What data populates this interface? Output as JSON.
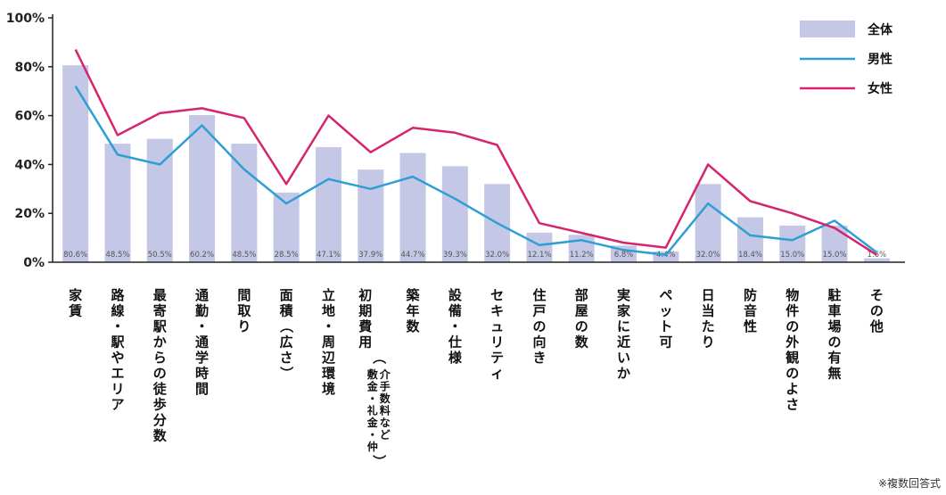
{
  "chart_data": {
    "type": "bar",
    "categories": [
      "家賃",
      "路線・駅やエリア",
      "最寄駅からの徒歩分数",
      "通勤・通学時間",
      "間取り",
      "面積（広さ）",
      "立地・周辺環境",
      "初期費用",
      "築年数",
      "設備・仕様",
      "セキュリティ",
      "住戸の向き",
      "部屋の数",
      "実家に近いか",
      "ペット可",
      "日当たり",
      "防音性",
      "物件の外観のよさ",
      "駐車場の有無",
      "その他"
    ],
    "category_sublabels": {
      "7": "敷金・礼金・仲介手数料など"
    },
    "series": [
      {
        "name": "全体",
        "type": "bar",
        "color": "#c4c8e6",
        "values": [
          80.6,
          48.5,
          50.5,
          60.2,
          48.5,
          28.5,
          47.1,
          37.9,
          44.7,
          39.3,
          32.0,
          12.1,
          11.2,
          6.8,
          4.4,
          32.0,
          18.4,
          15.0,
          15.0,
          1.6
        ]
      },
      {
        "name": "男性",
        "type": "line",
        "color": "#2e9fd4",
        "values": [
          72,
          44,
          40,
          56,
          38,
          24,
          34,
          30,
          35,
          26,
          16,
          7,
          9,
          5,
          3,
          24,
          11,
          9,
          17,
          4
        ]
      },
      {
        "name": "女性",
        "type": "line",
        "color": "#d6246e",
        "values": [
          87,
          52,
          61,
          63,
          59,
          32,
          60,
          45,
          55,
          53,
          48,
          16,
          12,
          8,
          6,
          40,
          25,
          20,
          14,
          3
        ]
      }
    ],
    "data_labels": [
      "80.6%",
      "48.5%",
      "50.5%",
      "60.2%",
      "48.5%",
      "28.5%",
      "47.1%",
      "37.9%",
      "44.7%",
      "39.3%",
      "32.0%",
      "12.1%",
      "11.2%",
      "6.8%",
      "4.4%",
      "32.0%",
      "18.4%",
      "15.0%",
      "15.0%",
      "1.6%"
    ],
    "yticks": [
      "0%",
      "20%",
      "40%",
      "60%",
      "80%",
      "100%"
    ],
    "ylim": [
      0,
      100
    ],
    "grid": false,
    "legend_position": "top-right",
    "note": "※複数回答式"
  }
}
